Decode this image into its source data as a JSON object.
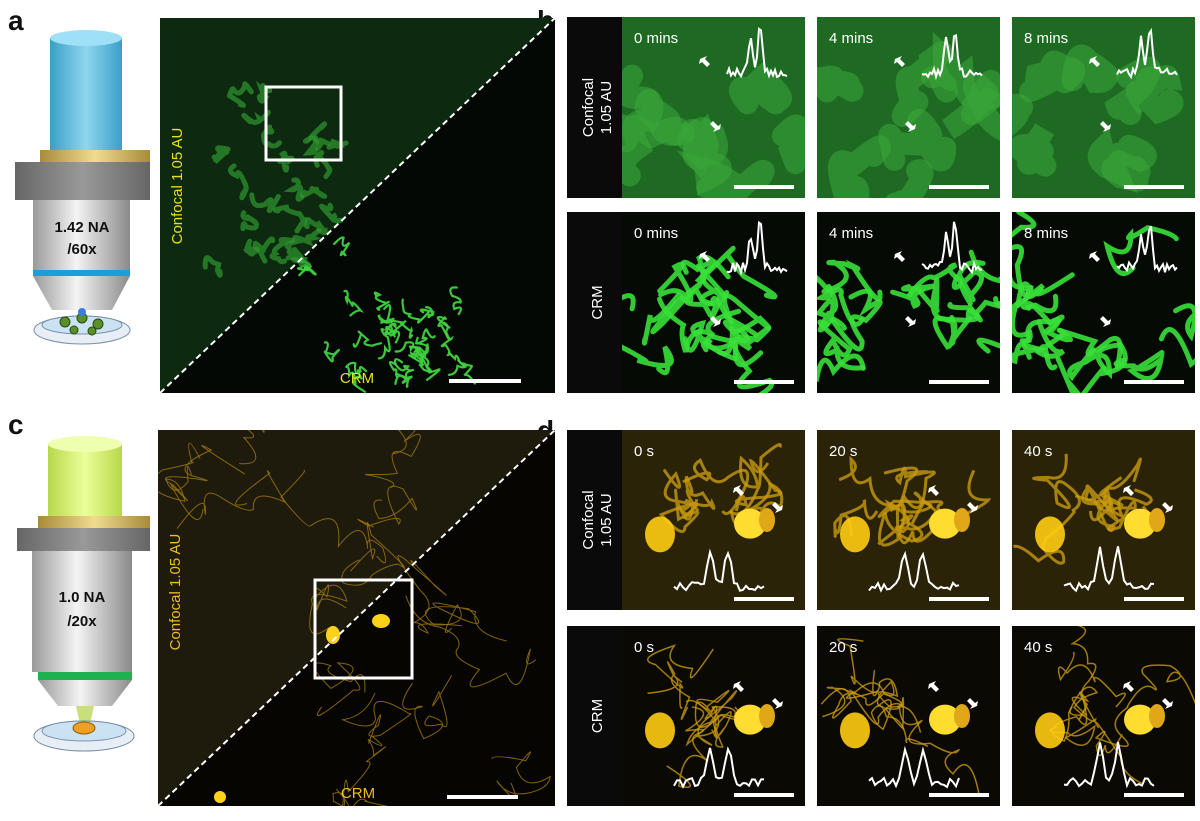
{
  "panels": {
    "a": {
      "label": "a",
      "objective": [
        "1.42 NA",
        "/60x"
      ],
      "image_labels": {
        "top": "Confocal 1.05 AU",
        "bottom": "CRM"
      }
    },
    "b": {
      "label": "b",
      "rows": [
        {
          "label": [
            "Confocal",
            "1.05 AU"
          ],
          "times": [
            "0 mins",
            "4 mins",
            "8 mins"
          ]
        },
        {
          "label": [
            "CRM"
          ],
          "times": [
            "0 mins",
            "4 mins",
            "8 mins"
          ]
        }
      ]
    },
    "c": {
      "label": "c",
      "objective": [
        "1.0 NA",
        "/20x"
      ],
      "image_labels": {
        "top": "Confocal 1.05 AU",
        "bottom": "CRM"
      }
    },
    "d": {
      "label": "d",
      "rows": [
        {
          "label": [
            "Confocal",
            "1.05 AU"
          ],
          "times": [
            "0 s",
            "20 s",
            "40 s"
          ]
        },
        {
          "label": [
            "CRM"
          ],
          "times": [
            "0 s",
            "20 s",
            "40 s"
          ]
        }
      ]
    }
  }
}
